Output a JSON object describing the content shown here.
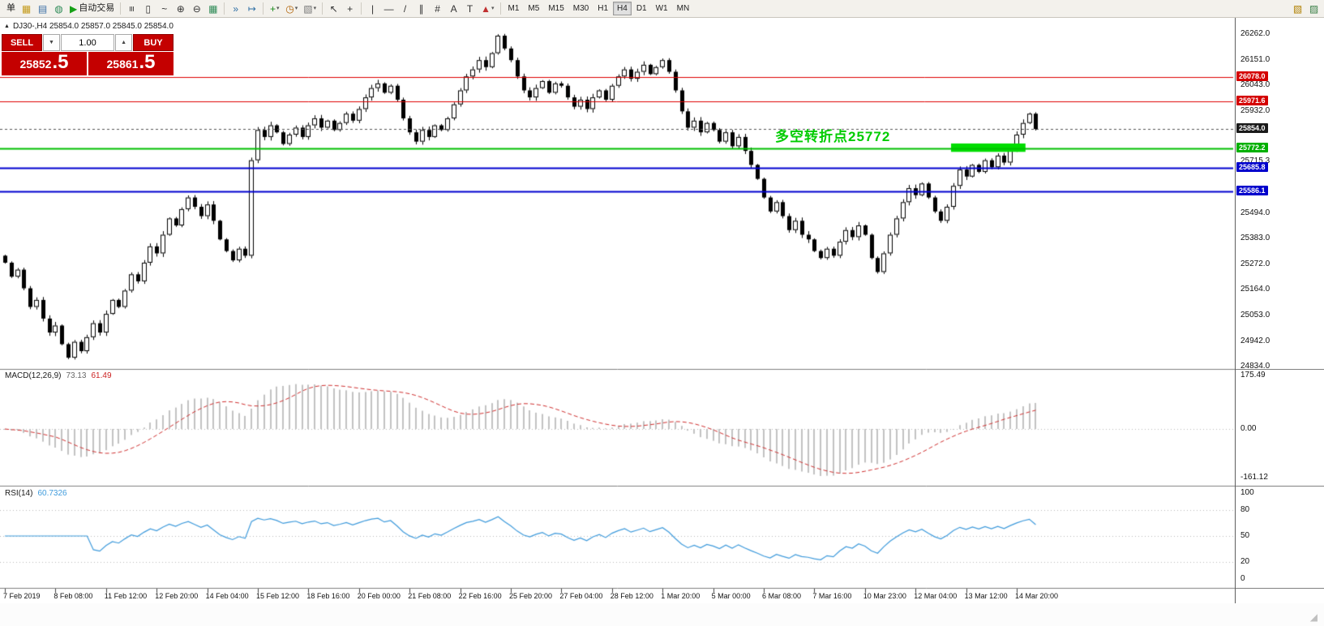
{
  "toolbar": {
    "left_items": [
      {
        "name": "new-order",
        "label": "单"
      },
      {
        "name": "charts-window"
      },
      {
        "name": "profiles"
      },
      {
        "name": "strategy-tester"
      },
      {
        "name": "auto-trading",
        "label": "自动交易"
      },
      {
        "name": "separator"
      },
      {
        "name": "bar-chart-mode"
      },
      {
        "name": "candlestick-mode"
      },
      {
        "name": "line-chart-mode"
      },
      {
        "name": "zoom-in"
      },
      {
        "name": "zoom-out"
      },
      {
        "name": "tile-windows"
      },
      {
        "name": "separator"
      },
      {
        "name": "auto-scroll"
      },
      {
        "name": "chart-shift"
      },
      {
        "name": "separator"
      },
      {
        "name": "indicators",
        "dropdown": true
      },
      {
        "name": "periods",
        "dropdown": true
      },
      {
        "name": "templates",
        "dropdown": true
      },
      {
        "name": "separator"
      },
      {
        "name": "cursor"
      },
      {
        "name": "crosshair"
      },
      {
        "name": "separator"
      },
      {
        "name": "vertical-line"
      },
      {
        "name": "horizontal-line"
      },
      {
        "name": "trendline"
      },
      {
        "name": "equidistant-channel"
      },
      {
        "name": "fibonacci"
      },
      {
        "name": "text"
      },
      {
        "name": "text-label"
      },
      {
        "name": "arrows",
        "dropdown": true
      },
      {
        "name": "separator"
      }
    ],
    "timeframes": [
      "M1",
      "M5",
      "M15",
      "M30",
      "H1",
      "H4",
      "D1",
      "W1",
      "MN"
    ],
    "active_timeframe": "H4",
    "right_items": [
      {
        "name": "new-chart"
      },
      {
        "name": "window-list"
      }
    ]
  },
  "chart": {
    "title": "DJ30-,H4 25854.0 25857.0 25845.0 25854.0",
    "symbol": "DJ30-",
    "period": "H4",
    "ohlc": {
      "open": "25854.0",
      "high": "25857.0",
      "low": "25845.0",
      "close": "25854.0"
    },
    "annotation": {
      "text": "多空转折点25772",
      "color": "#00cc00"
    },
    "levels": [
      {
        "price": "26078.0",
        "value": 26078.0,
        "color": "#e00000",
        "width": 1,
        "dash": false,
        "badge": "#d40000"
      },
      {
        "price": "25971.6",
        "value": 25971.6,
        "color": "#e00000",
        "width": 1,
        "dash": false,
        "badge": "#d40000"
      },
      {
        "price": "25854.0",
        "value": 25854.0,
        "color": "#555555",
        "width": 1,
        "dash": true,
        "badge": "#1a1a1a",
        "current": true
      },
      {
        "price": "25772.2",
        "value": 25772.2,
        "color": "#00c000",
        "width": 2,
        "dash": false,
        "badge": "#00b000"
      },
      {
        "price": "25685.8",
        "value": 25685.8,
        "color": "#0000d0",
        "width": 2,
        "dash": false,
        "badge": "#0000cc"
      },
      {
        "price": "25586.1",
        "value": 25586.1,
        "color": "#0000d0",
        "width": 2,
        "dash": false,
        "badge": "#0000cc"
      }
    ],
    "zone": {
      "from_index": 150,
      "to_index": 161,
      "price_top": 25792,
      "price_bottom": 25756,
      "color": "#00dd00"
    },
    "price_axis_labels": [
      "26262.0",
      "26151.0",
      "26043.0",
      "25932.0",
      "25715.3",
      "25494.0",
      "25383.0",
      "25272.0",
      "25164.0",
      "25053.0",
      "24942.0",
      "24834.0"
    ],
    "axis_max": 26262.0,
    "axis_min": 24834.0
  },
  "trade_panel": {
    "sell_label": "SELL",
    "buy_label": "BUY",
    "volume": "1.00",
    "sell_price_main": "25852",
    "sell_price_pips": ".5",
    "buy_price_main": "25861",
    "buy_price_pips": ".5"
  },
  "macd": {
    "name": "MACD(12,26,9)",
    "value_main": "73.13",
    "value_signal": "61.49",
    "axis": [
      "175.49",
      "0.00",
      "-161.12"
    ],
    "params": {
      "fast": 12,
      "slow": 26,
      "signal": 9
    }
  },
  "rsi": {
    "name": "RSI(14)",
    "value": "60.7326",
    "axis": [
      "100",
      "80",
      "50",
      "20",
      "0"
    ],
    "period": 14
  },
  "chart_data": {
    "type": "candlestick",
    "title": "DJ30- H4",
    "ylim": [
      24834.0,
      26262.0
    ],
    "first_open": 25310,
    "closes": [
      25280,
      25220,
      25250,
      25170,
      25090,
      25120,
      25040,
      24980,
      25010,
      24930,
      24872,
      24940,
      24900,
      24960,
      25020,
      24980,
      25060,
      25120,
      25090,
      25160,
      25230,
      25200,
      25280,
      25350,
      25320,
      25400,
      25470,
      25440,
      25510,
      25560,
      25520,
      25480,
      25530,
      25460,
      25380,
      25330,
      25290,
      25340,
      25310,
      25720,
      25850,
      25820,
      25870,
      25840,
      25790,
      25830,
      25860,
      25820,
      25870,
      25900,
      25860,
      25890,
      25850,
      25880,
      25920,
      25890,
      25940,
      25990,
      26030,
      26050,
      26010,
      26040,
      25980,
      25900,
      25840,
      25800,
      25850,
      25820,
      25870,
      25850,
      25900,
      25960,
      26020,
      26080,
      26110,
      26150,
      26120,
      26180,
      26255,
      26200,
      26150,
      26080,
      26020,
      25990,
      26030,
      26060,
      26010,
      26050,
      26040,
      25990,
      25950,
      25980,
      25940,
      25990,
      26020,
      25980,
      26040,
      26080,
      26110,
      26070,
      26100,
      26130,
      26090,
      26120,
      26150,
      26100,
      26020,
      25930,
      25860,
      25890,
      25840,
      25880,
      25850,
      25800,
      25840,
      25780,
      25820,
      25760,
      25700,
      25640,
      25560,
      25500,
      25540,
      25480,
      25420,
      25460,
      25400,
      25380,
      25330,
      25300,
      25340,
      25310,
      25370,
      25420,
      25390,
      25440,
      25400,
      25300,
      25240,
      25320,
      25400,
      25470,
      25540,
      25600,
      25570,
      25620,
      25560,
      25500,
      25460,
      25520,
      25610,
      25680,
      25650,
      25700,
      25670,
      25720,
      25690,
      25740,
      25710,
      25770,
      25830,
      25880,
      25920,
      25854
    ],
    "time_labels": [
      "7 Feb 2019",
      "8 Feb 08:00",
      "11 Feb 12:00",
      "12 Feb 20:00",
      "14 Feb 04:00",
      "15 Feb 12:00",
      "18 Feb 16:00",
      "20 Feb 00:00",
      "21 Feb 08:00",
      "22 Feb 16:00",
      "25 Feb 20:00",
      "27 Feb 04:00",
      "28 Feb 12:00",
      "1 Mar 20:00",
      "5 Mar 00:00",
      "6 Mar 08:00",
      "7 Mar 16:00",
      "10 Mar 23:00",
      "12 Mar 04:00",
      "13 Mar 12:00",
      "14 Mar 20:00"
    ]
  }
}
